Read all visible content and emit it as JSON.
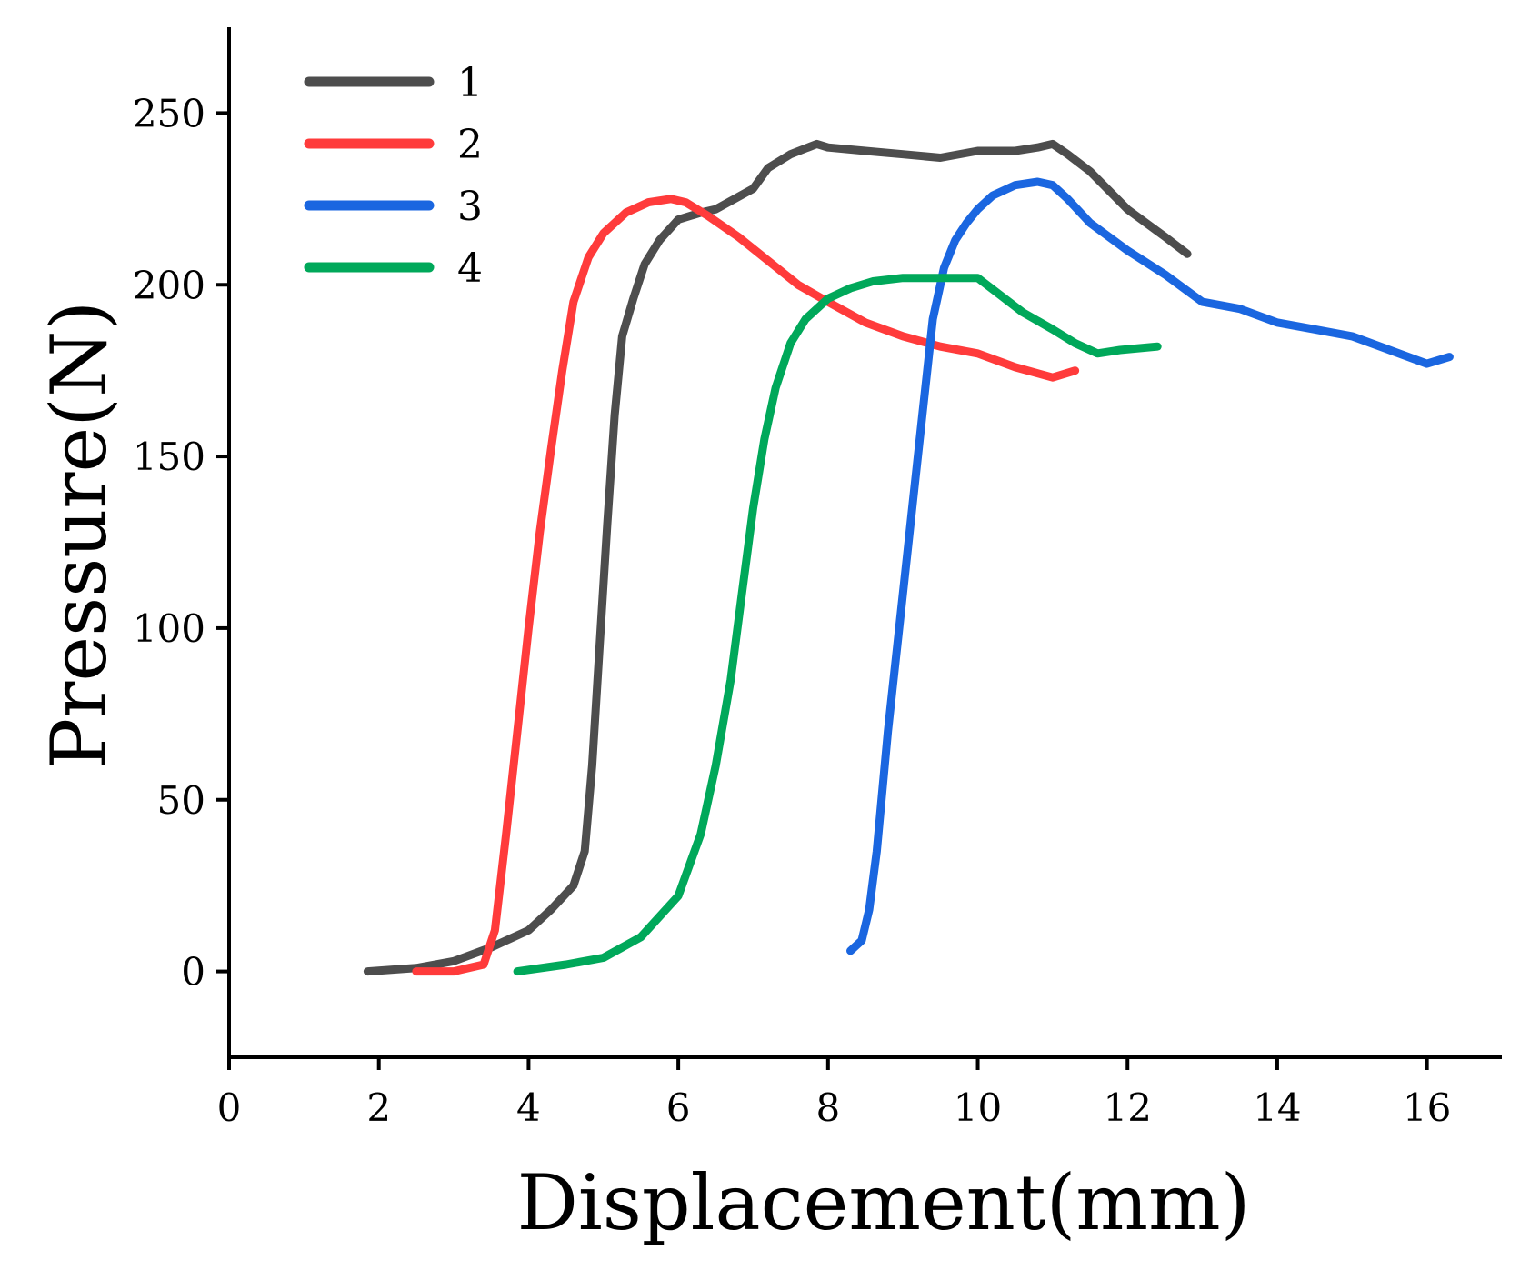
{
  "chart_data": {
    "type": "line",
    "title": "",
    "xlabel": "Displacement(mm)",
    "ylabel": "Pressure(N)",
    "xlim": [
      0,
      17
    ],
    "ylim": [
      -25,
      275
    ],
    "xticks": [
      0,
      2,
      4,
      6,
      8,
      10,
      12,
      14,
      16
    ],
    "yticks": [
      0,
      50,
      100,
      150,
      200,
      250
    ],
    "grid": false,
    "legend_position": "top-left",
    "series": [
      {
        "name": "1",
        "color": "#4d4d4d",
        "x": [
          1.85,
          2.5,
          3.0,
          3.5,
          4.0,
          4.3,
          4.6,
          4.75,
          4.85,
          4.95,
          5.05,
          5.15,
          5.25,
          5.4,
          5.55,
          5.75,
          6.0,
          6.3,
          6.5,
          7.0,
          7.2,
          7.5,
          7.85,
          8.0,
          8.5,
          9.0,
          9.5,
          10.0,
          10.5,
          10.8,
          11.0,
          11.2,
          11.5,
          12.0,
          12.5,
          12.8
        ],
        "y": [
          0,
          1,
          3,
          7,
          12,
          18,
          25,
          35,
          60,
          95,
          130,
          162,
          185,
          196,
          206,
          213,
          219,
          221,
          222,
          228,
          234,
          238,
          241,
          240,
          239,
          238,
          237,
          239,
          239,
          240,
          241,
          238,
          233,
          222,
          214,
          209
        ]
      },
      {
        "name": "2",
        "color": "#ff3b3b",
        "x": [
          2.5,
          3.0,
          3.4,
          3.55,
          3.7,
          3.85,
          4.0,
          4.15,
          4.3,
          4.45,
          4.6,
          4.8,
          5.0,
          5.3,
          5.6,
          5.9,
          6.1,
          6.4,
          6.8,
          7.2,
          7.6,
          8.0,
          8.5,
          9.0,
          9.5,
          10.0,
          10.5,
          11.0,
          11.3
        ],
        "y": [
          0,
          0,
          2,
          12,
          40,
          70,
          100,
          128,
          152,
          175,
          195,
          208,
          215,
          221,
          224,
          225,
          224,
          220,
          214,
          207,
          200,
          195,
          189,
          185,
          182,
          180,
          176,
          173,
          175
        ]
      },
      {
        "name": "3",
        "color": "#1a66e0",
        "x": [
          8.3,
          8.45,
          8.55,
          8.65,
          8.8,
          9.0,
          9.2,
          9.4,
          9.55,
          9.7,
          9.85,
          10.0,
          10.2,
          10.5,
          10.8,
          11.0,
          11.2,
          11.5,
          12.0,
          12.5,
          13.0,
          13.5,
          14.0,
          14.5,
          15.0,
          15.5,
          16.0,
          16.3
        ],
        "y": [
          6,
          9,
          18,
          35,
          70,
          110,
          150,
          190,
          205,
          213,
          218,
          222,
          226,
          229,
          230,
          229,
          225,
          218,
          210,
          203,
          195,
          193,
          189,
          187,
          185,
          181,
          177,
          179
        ]
      },
      {
        "name": "4",
        "color": "#00a85a",
        "x": [
          3.85,
          4.5,
          5.0,
          5.5,
          6.0,
          6.3,
          6.5,
          6.7,
          6.85,
          7.0,
          7.15,
          7.3,
          7.5,
          7.7,
          8.0,
          8.3,
          8.6,
          9.0,
          9.5,
          10.0,
          10.3,
          10.6,
          11.0,
          11.3,
          11.6,
          11.9,
          12.4
        ],
        "y": [
          0,
          2,
          4,
          10,
          22,
          40,
          60,
          85,
          110,
          135,
          155,
          170,
          183,
          190,
          196,
          199,
          201,
          202,
          202,
          202,
          197,
          192,
          187,
          183,
          180,
          181,
          182
        ]
      }
    ]
  }
}
